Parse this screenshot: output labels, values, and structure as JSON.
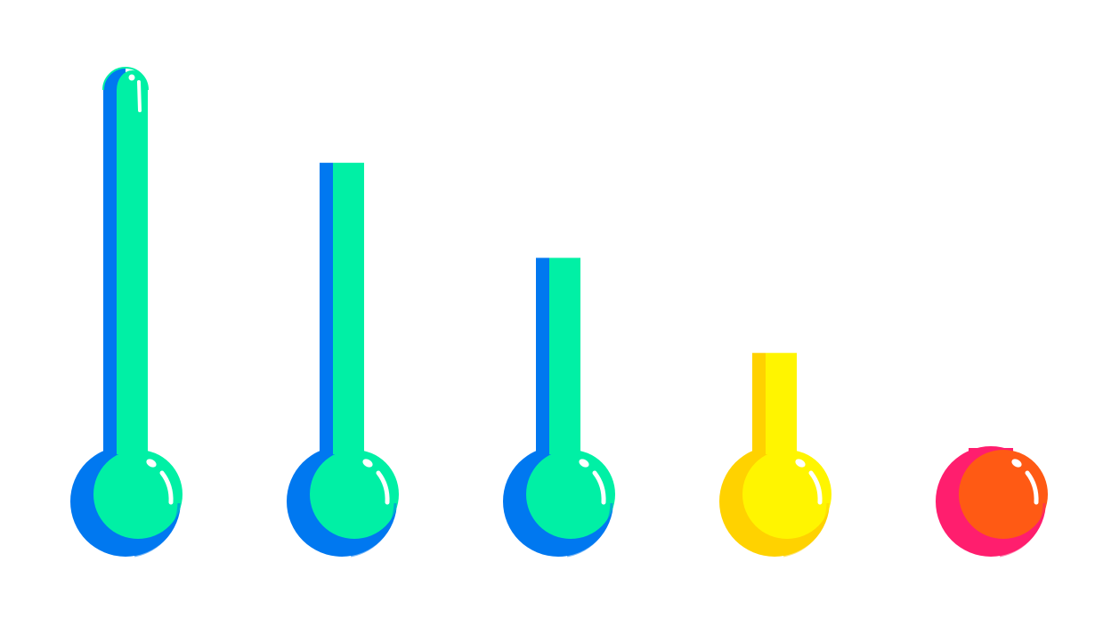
{
  "thermometers": [
    {
      "name": "full",
      "fill_fraction": 1.0,
      "main_color": "#00F0A5",
      "shadow_color": "#0078F0"
    },
    {
      "name": "three-quarter",
      "fill_fraction": 0.75,
      "main_color": "#00F0A5",
      "shadow_color": "#0078F0"
    },
    {
      "name": "half",
      "fill_fraction": 0.5,
      "main_color": "#00F0A5",
      "shadow_color": "#0078F0"
    },
    {
      "name": "quarter",
      "fill_fraction": 0.25,
      "main_color": "#FFF500",
      "shadow_color": "#FFD200"
    },
    {
      "name": "empty",
      "fill_fraction": 0.0,
      "main_color": "#FF5A14",
      "shadow_color": "#FF1E6E"
    }
  ],
  "colors": {
    "background": "#FFFFFF",
    "highlight": "#FFFFFF"
  }
}
